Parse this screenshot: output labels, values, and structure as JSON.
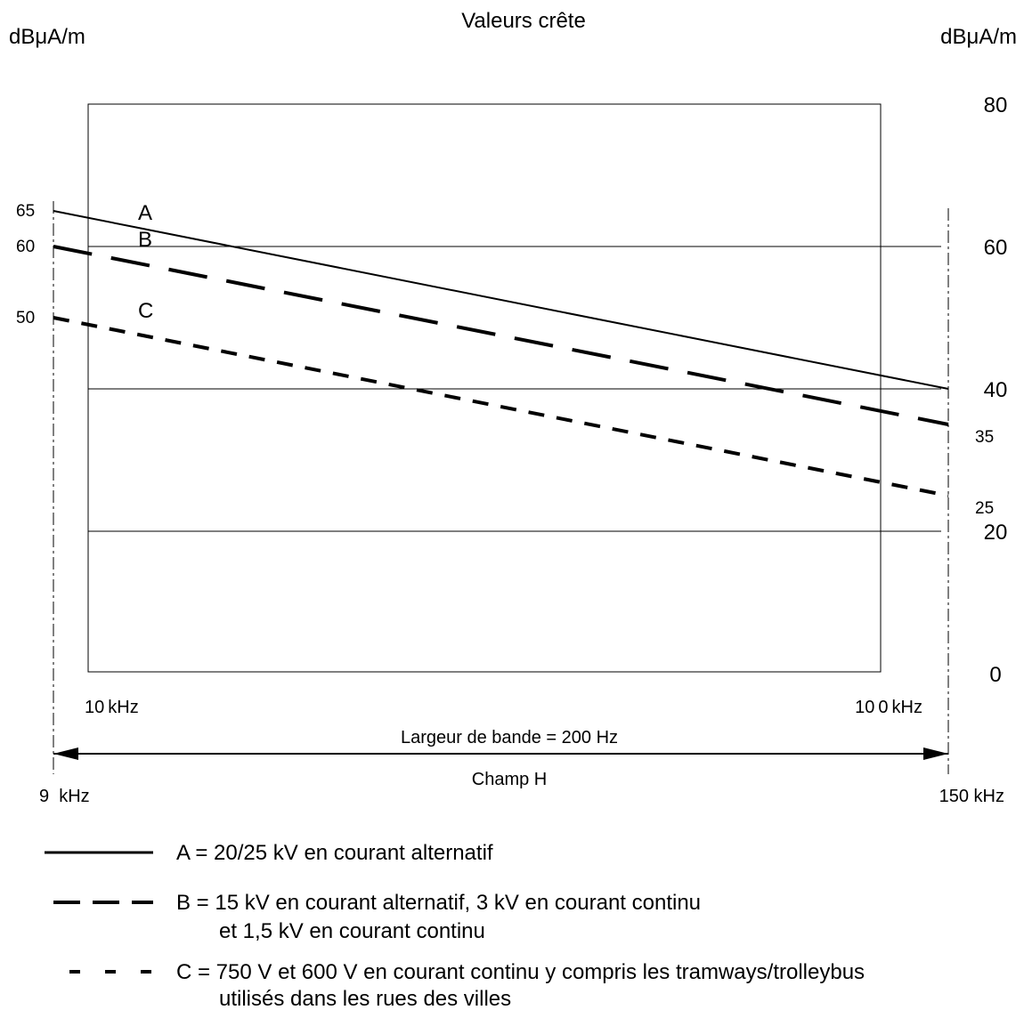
{
  "chart_data": {
    "type": "line",
    "title": "Valeurs crête",
    "ylabel_left": "dBμA/m",
    "ylabel_right": "dBμA/m",
    "x_scale": "log",
    "xlim_khz": [
      9,
      150
    ],
    "ylim": [
      0,
      80
    ],
    "right_axis_ticks": [
      "80",
      "60",
      "40",
      "20",
      "0"
    ],
    "frame_x_labels": [
      {
        "text": "10 kHz",
        "value_khz": 10
      },
      {
        "text": "10 0 kHz",
        "value_khz": 100
      }
    ],
    "bottom_x_labels": [
      {
        "text": "9  kHz",
        "value_khz": 9
      },
      {
        "text": "150 kHz",
        "value_khz": 150
      }
    ],
    "bandwidth_label": "Largeur de bande = 200 Hz",
    "field_label": "Champ H",
    "reference_levels": [
      20,
      40,
      60
    ],
    "series": [
      {
        "name": "A",
        "style": "solid",
        "x_khz": [
          9,
          150
        ],
        "y": [
          65,
          40
        ],
        "start_label": "65",
        "end_label": ""
      },
      {
        "name": "B",
        "style": "long-dash",
        "x_khz": [
          9,
          150
        ],
        "y": [
          60,
          35
        ],
        "start_label": "60",
        "end_label": "35"
      },
      {
        "name": "C",
        "style": "short-dash",
        "x_khz": [
          9,
          150
        ],
        "y": [
          50,
          25
        ],
        "start_label": "50",
        "end_label": "25"
      }
    ],
    "legend": [
      {
        "key": "A",
        "style": "solid",
        "lines": [
          "A = 20/25 kV en courant alternatif"
        ]
      },
      {
        "key": "B",
        "style": "long-dash",
        "lines": [
          "B = 15 kV en courant alternatif, 3 kV en courant continu",
          "et 1,5 kV en courant continu"
        ]
      },
      {
        "key": "C",
        "style": "short-dash",
        "lines": [
          "C = 750 V et 600 V en courant continu y compris les tramways/trolleybus",
          "utilisés dans les rues des villes"
        ]
      }
    ]
  }
}
